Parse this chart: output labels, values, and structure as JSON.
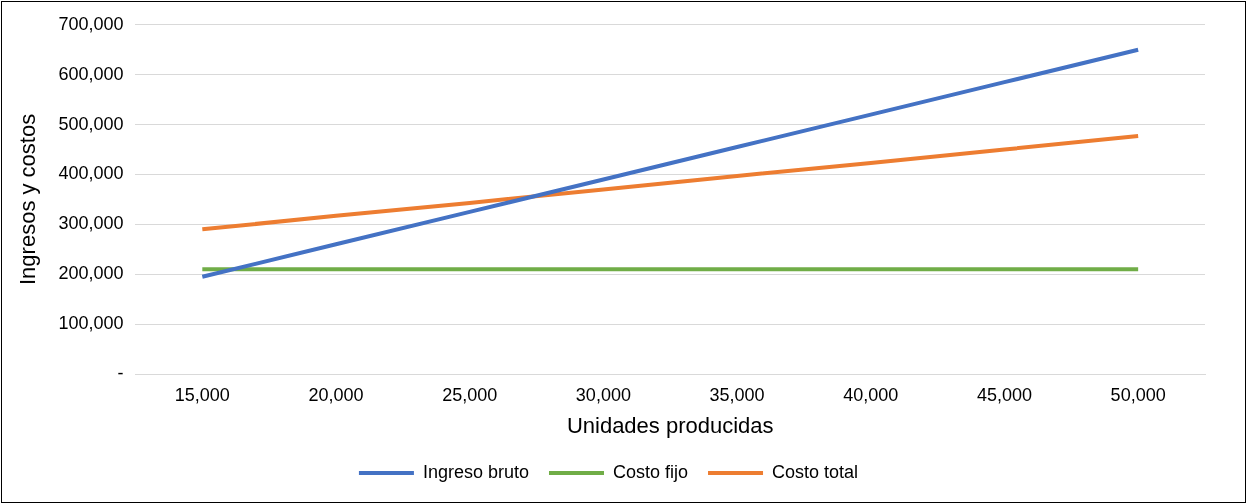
{
  "chart_data": {
    "type": "line",
    "xlabel": "Unidades producidas",
    "ylabel": "Ingresos y costos",
    "categories": [
      "15,000",
      "20,000",
      "25,000",
      "30,000",
      "35,000",
      "40,000",
      "45,000",
      "50,000"
    ],
    "series": [
      {
        "name": "Ingreso bruto",
        "color": "#4472c4",
        "values": [
          195000,
          260000,
          325000,
          390000,
          455000,
          520000,
          585000,
          650000
        ]
      },
      {
        "name": "Costo fijo",
        "color": "#70ad47",
        "values": [
          210000,
          210000,
          210000,
          210000,
          210000,
          210000,
          210000,
          210000
        ]
      },
      {
        "name": "Costo total",
        "color": "#ed7d31",
        "values": [
          290000,
          317000,
          343000,
          370000,
          397000,
          423000,
          450000,
          477000
        ]
      }
    ],
    "ylim": [
      0,
      700000
    ],
    "yticks": [
      {
        "value": 0,
        "label": "-"
      },
      {
        "value": 100000,
        "label": "100,000"
      },
      {
        "value": 200000,
        "label": "200,000"
      },
      {
        "value": 300000,
        "label": "300,000"
      },
      {
        "value": 400000,
        "label": "400,000"
      },
      {
        "value": 500000,
        "label": "500,000"
      },
      {
        "value": 600000,
        "label": "600,000"
      },
      {
        "value": 700000,
        "label": "700,000"
      }
    ],
    "grid": "y",
    "legend": "bottom",
    "marker": "none",
    "line_style": "solid"
  }
}
